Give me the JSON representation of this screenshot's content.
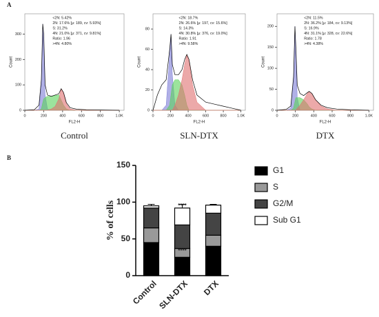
{
  "panel_labels": [
    "A",
    "B"
  ],
  "chart_data": [
    {
      "type": "line",
      "title": "Control",
      "xlabel": "FL2-H",
      "ylabel": "Count",
      "xlim": [
        0,
        1050
      ],
      "ylim": [
        0,
        380
      ],
      "xticks": [
        0,
        200,
        400,
        600,
        800,
        {
          "value": 1000,
          "label": "1.0K"
        }
      ],
      "yticks": [
        0,
        100,
        200,
        300
      ],
      "annotations": [
        "<2N: 5.42%",
        "2N: 17.6% [μ: 189, cv: 5.93%]",
        "S: 31.2%",
        "4N: 21.0% [μ: 371, cv: 9.81%]",
        "Ratio: 1.96",
        ">4N: 4.80%"
      ],
      "x": [
        0,
        100,
        150,
        175,
        190,
        200,
        215,
        240,
        280,
        320,
        360,
        385,
        410,
        440,
        480,
        550,
        650,
        800,
        1000
      ],
      "series": [
        {
          "color": "#7b7bd6",
          "fill": true,
          "values": [
            0,
            0,
            5,
            100,
            340,
            280,
            60,
            5,
            0,
            0,
            0,
            0,
            0,
            0,
            0,
            0,
            0,
            0,
            0
          ]
        },
        {
          "color": "#5ad25a",
          "fill": true,
          "values": [
            0,
            0,
            0,
            5,
            30,
            45,
            50,
            55,
            55,
            58,
            60,
            40,
            20,
            5,
            0,
            0,
            0,
            0,
            0
          ]
        },
        {
          "color": "#e07070",
          "fill": true,
          "values": [
            0,
            0,
            0,
            0,
            0,
            0,
            0,
            0,
            5,
            15,
            45,
            85,
            65,
            25,
            5,
            0,
            0,
            0,
            0
          ]
        },
        {
          "color": "#000000",
          "values": [
            0,
            2,
            20,
            120,
            340,
            300,
            100,
            60,
            55,
            60,
            65,
            85,
            70,
            30,
            10,
            4,
            2,
            1,
            0
          ]
        }
      ]
    },
    {
      "type": "line",
      "title": "SLN-DTX",
      "xlabel": "FL2-H",
      "ylabel": "Count",
      "xlim": [
        0,
        1050
      ],
      "ylim": [
        0,
        95
      ],
      "xticks": [
        0,
        200,
        400,
        600,
        800,
        {
          "value": 1000,
          "label": "1.0K"
        }
      ],
      "yticks": [
        0,
        20,
        40,
        60,
        80
      ],
      "annotations": [
        "<2N: 18.7%",
        "2N: 26.6% [μ: 197, cv: 15.6%]",
        "S: 14.3%",
        "4N: 30.8% [μ: 376, cv: 19.0%]",
        "Ratio: 1.91",
        ">4N: 9.58%"
      ],
      "x": [
        0,
        50,
        100,
        150,
        190,
        205,
        220,
        250,
        290,
        330,
        360,
        385,
        410,
        450,
        500,
        600,
        700,
        800,
        900,
        1000
      ],
      "series": [
        {
          "color": "#7b7bd6",
          "fill": true,
          "values": [
            0,
            0,
            0,
            5,
            55,
            75,
            35,
            5,
            0,
            0,
            0,
            0,
            0,
            0,
            0,
            0,
            0,
            0,
            0,
            0
          ]
        },
        {
          "color": "#5ad25a",
          "fill": true,
          "values": [
            0,
            0,
            0,
            0,
            5,
            15,
            25,
            30,
            30,
            25,
            15,
            5,
            0,
            0,
            0,
            0,
            0,
            0,
            0,
            0
          ]
        },
        {
          "color": "#e07070",
          "fill": true,
          "values": [
            0,
            0,
            0,
            0,
            0,
            0,
            0,
            5,
            15,
            30,
            45,
            55,
            48,
            25,
            8,
            0,
            0,
            0,
            0,
            0
          ]
        },
        {
          "color": "#000000",
          "values": [
            0,
            15,
            25,
            30,
            60,
            75,
            45,
            35,
            35,
            40,
            50,
            55,
            50,
            30,
            15,
            8,
            6,
            4,
            2,
            0
          ]
        }
      ]
    },
    {
      "type": "line",
      "title": "DTX",
      "xlabel": "FL2-H",
      "ylabel": "Count",
      "xlim": [
        0,
        1050
      ],
      "ylim": [
        0,
        230
      ],
      "xticks": [
        0,
        200,
        400,
        600,
        800,
        {
          "value": 1000,
          "label": "1.0K"
        }
      ],
      "yticks": [
        0,
        50,
        100,
        150,
        200
      ],
      "annotations": [
        "<2N: 11.5%",
        "2N: 36.2% [μ: 184, cv: 9.13%]",
        "S: 16.9%",
        "4N: 31.1% [μ: 328, cv: 22.6%]",
        "Ratio: 1.78",
        ">4N: 4.38%"
      ],
      "x": [
        0,
        100,
        150,
        180,
        195,
        205,
        220,
        250,
        290,
        330,
        350,
        380,
        420,
        480,
        550,
        650,
        800,
        1000
      ],
      "series": [
        {
          "color": "#7b7bd6",
          "fill": true,
          "values": [
            0,
            0,
            5,
            75,
            200,
            140,
            30,
            0,
            0,
            0,
            0,
            0,
            0,
            0,
            0,
            0,
            0,
            0
          ]
        },
        {
          "color": "#5ad25a",
          "fill": true,
          "values": [
            0,
            0,
            0,
            5,
            20,
            30,
            30,
            30,
            25,
            15,
            8,
            3,
            0,
            0,
            0,
            0,
            0,
            0
          ]
        },
        {
          "color": "#e07070",
          "fill": true,
          "values": [
            0,
            0,
            0,
            0,
            0,
            0,
            5,
            12,
            25,
            40,
            45,
            40,
            25,
            10,
            3,
            0,
            0,
            0
          ]
        },
        {
          "color": "#000000",
          "values": [
            0,
            2,
            10,
            80,
            200,
            150,
            60,
            40,
            35,
            42,
            45,
            40,
            25,
            12,
            6,
            3,
            1,
            0
          ]
        }
      ]
    },
    {
      "type": "stacked_bar",
      "ylabel": "% of cells",
      "categories": [
        "Control",
        "SLN-DTX",
        "DTX"
      ],
      "ylim": [
        0,
        150
      ],
      "yticks": [
        0,
        50,
        100,
        150
      ],
      "series": [
        {
          "name": "G1",
          "color": "#000000",
          "values": [
            45,
            25,
            40
          ],
          "errors": [
            6,
            3,
            4
          ]
        },
        {
          "name": "S",
          "color": "#999999",
          "values": [
            20,
            12,
            15
          ],
          "errors": [
            8,
            4,
            3
          ]
        },
        {
          "name": "G2/M",
          "color": "#444444",
          "values": [
            27,
            32,
            30
          ],
          "errors": [
            5,
            2,
            2
          ]
        },
        {
          "name": "Sub G1",
          "color": "#ffffff",
          "values": [
            3,
            23,
            11
          ],
          "errors": [
            2,
            5,
            1
          ]
        }
      ],
      "annotations": [
        "****",
        "****"
      ]
    }
  ]
}
